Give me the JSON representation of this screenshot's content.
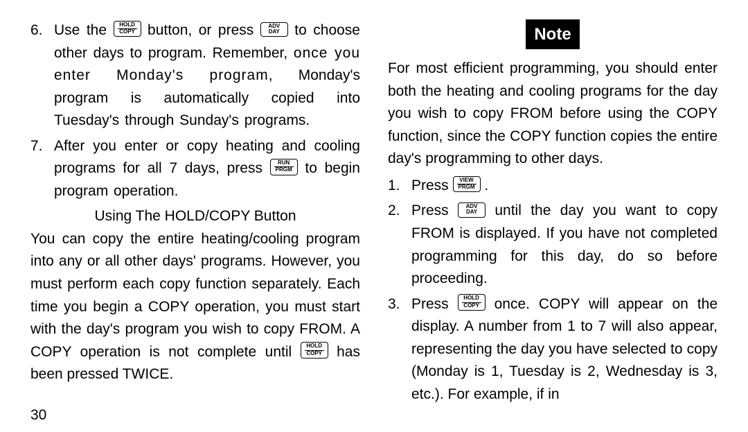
{
  "left": {
    "items": [
      {
        "num": "6.",
        "parts": [
          {
            "t": "text",
            "v": "Use the "
          },
          {
            "t": "btn",
            "top": "HOLD",
            "rule": true,
            "bot": "COPY",
            "name": "hold-copy-button"
          },
          {
            "t": "text",
            "v": " button, or press "
          },
          {
            "t": "btn",
            "top": "ADV",
            "bot": "DAY",
            "name": "adv-day-button"
          },
          {
            "t": "text",
            "v": " to choose other days to program. Remember, "
          },
          {
            "t": "text",
            "cls": "spaced1",
            "v": "once you enter Monday's program,"
          },
          {
            "t": "text",
            "v": " Monday's program is automatically copied into Tuesday's through Sunday's programs."
          }
        ]
      },
      {
        "num": "7.",
        "parts": [
          {
            "t": "text",
            "v": "After you enter or copy heating and cooling programs for all 7 days, press "
          },
          {
            "t": "btn",
            "top": "RUN",
            "rule": true,
            "bot": "PRGM",
            "name": "run-prgm-button"
          },
          {
            "t": "text",
            "v": " to begin program operation."
          }
        ]
      }
    ],
    "heading": "Using The HOLD/COPY Button",
    "para_parts": [
      {
        "t": "text",
        "v": "You can copy the entire heating/cooling program into any or all other days' programs. However, you must perform each copy function separately. Each time you begin a COPY operation, you must start with the day's program you wish to copy FROM. A COPY operation is not complete until "
      },
      {
        "t": "btn",
        "top": "HOLD",
        "rule": true,
        "bot": "COPY",
        "name": "hold-copy-button"
      },
      {
        "t": "text",
        "v": " has been pressed TWICE."
      }
    ]
  },
  "right": {
    "note_label": "Note",
    "intro": "For most efficient programming, you should enter both the heating and cooling programs for the day you wish to copy FROM before using the COPY function, since the COPY function copies the entire day's programming to other days.",
    "items": [
      {
        "num": "1.",
        "parts": [
          {
            "t": "text",
            "v": "Press "
          },
          {
            "t": "btn",
            "top": "VIEW",
            "rule": true,
            "bot": "PRGM",
            "name": "view-prgm-button"
          },
          {
            "t": "text",
            "v": " ."
          }
        ]
      },
      {
        "num": "2.",
        "parts": [
          {
            "t": "text",
            "v": "Press "
          },
          {
            "t": "btn",
            "top": "ADV",
            "bot": "DAY",
            "name": "adv-day-button"
          },
          {
            "t": "text",
            "v": " until the day you want to copy FROM is displayed. If you have not completed programming for this day, do so before proceeding."
          }
        ]
      },
      {
        "num": "3.",
        "parts": [
          {
            "t": "text",
            "v": "Press "
          },
          {
            "t": "btn",
            "top": "HOLD",
            "rule": true,
            "bot": "COPY",
            "name": "hold-copy-button"
          },
          {
            "t": "text",
            "v": " once. COPY will appear on the display. A number from 1 to 7 will also appear, representing the day you have selected to copy (Monday is 1, Tuesday is 2, Wednesday is 3, etc.). For example, if in"
          }
        ]
      }
    ]
  },
  "page_number": "30"
}
